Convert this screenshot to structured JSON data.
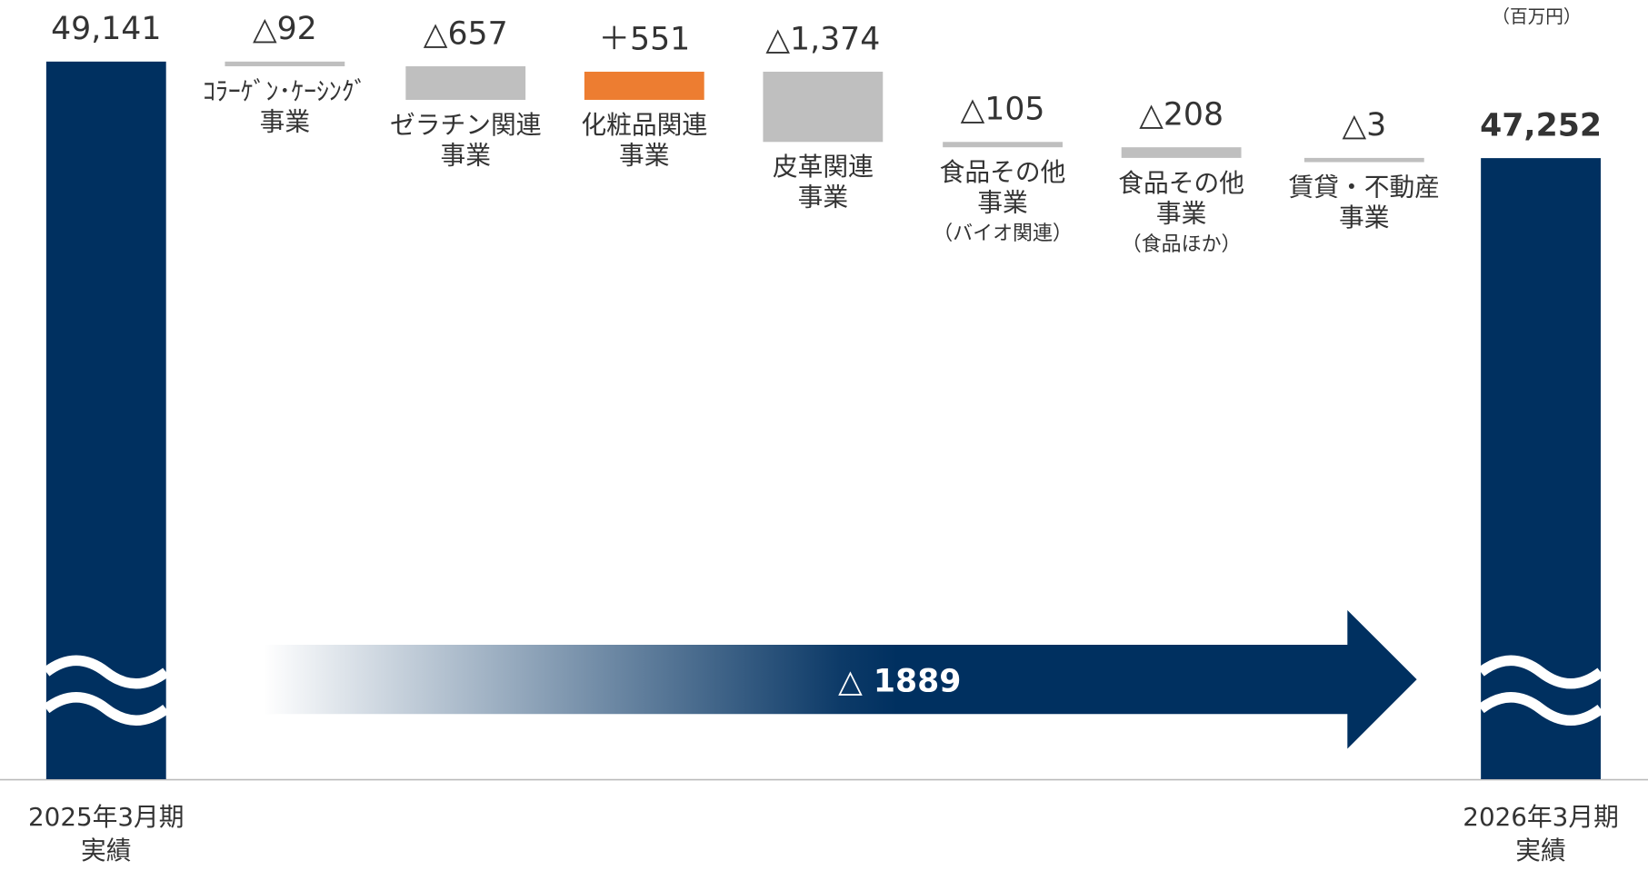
{
  "chart_data": {
    "type": "waterfall",
    "unit_label": "（百万円）",
    "categories": [
      [
        "2025年3月期",
        "実績"
      ],
      [
        "ｺﾗｰｹﾞﾝ･ｹｰｼﾝｸﾞ",
        "事業"
      ],
      [
        "ゼラチン関連",
        "事業"
      ],
      [
        "化粧品関連",
        "事業"
      ],
      [
        "皮革関連",
        "事業"
      ],
      [
        "食品その他",
        "事業",
        "（バイオ関連）"
      ],
      [
        "食品その他",
        "事業",
        "（食品ほか）"
      ],
      [
        "賃貸・不動産",
        "事業"
      ],
      [
        "2026年3月期",
        "実績"
      ]
    ],
    "kinds": [
      "total",
      "delta",
      "delta",
      "delta",
      "delta",
      "delta",
      "delta",
      "delta",
      "total"
    ],
    "values": [
      49141,
      -92,
      -657,
      551,
      -1374,
      -105,
      -208,
      -3,
      47252
    ],
    "value_labels": [
      "49,141",
      "△92",
      "△657",
      "＋551",
      "△1,374",
      "△105",
      "△208",
      "△3",
      "47,252"
    ],
    "colors": {
      "total": "#003060",
      "decrease": "#bfbfbf",
      "increase": "#ed7d31"
    },
    "annotation": "△ 1889",
    "ylim": [
      35100,
      49400
    ],
    "axis_break": true
  }
}
